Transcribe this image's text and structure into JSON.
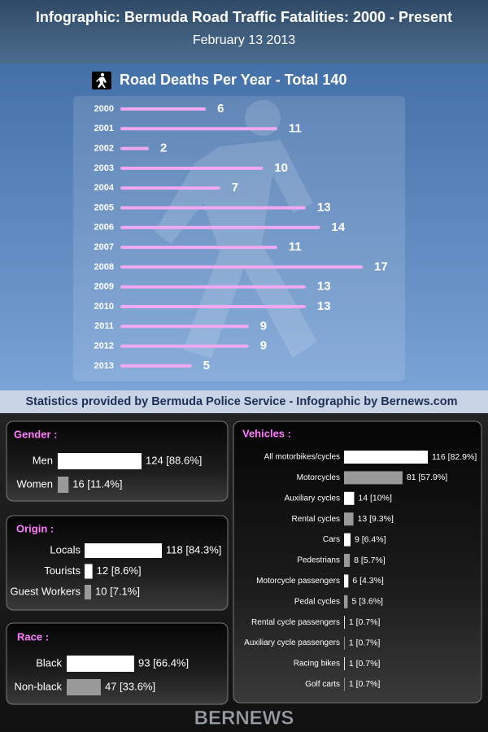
{
  "title": "Infographic: Bermuda Road Traffic Fatalities: 2000 - Present",
  "date": "February 13 2013",
  "credit": "Statistics provided by Bermuda Police Service - Infographic by Bernews.com",
  "footer": "BERNEWS",
  "chart_data": [
    {
      "type": "bar",
      "title": "Road Deaths Per Year - Total 140",
      "categories": [
        "2000",
        "2001",
        "2002",
        "2003",
        "2004",
        "2005",
        "2006",
        "2007",
        "2008",
        "2009",
        "2010",
        "2011",
        "2012",
        "2013"
      ],
      "values": [
        6,
        11,
        2,
        10,
        7,
        13,
        14,
        11,
        17,
        13,
        13,
        9,
        9,
        5
      ],
      "color": "#f0a8f0"
    },
    {
      "type": "bar",
      "title": "Gender :",
      "categories": [
        "Men",
        "Women"
      ],
      "values": [
        124,
        16
      ],
      "value_labels": [
        "124 [88.6%]",
        "16 [11.4%]"
      ],
      "colors": [
        "#ffffff",
        "#999999"
      ]
    },
    {
      "type": "bar",
      "title": "Origin :",
      "categories": [
        "Locals",
        "Tourists",
        "Guest Workers"
      ],
      "values": [
        118,
        12,
        10
      ],
      "value_labels": [
        "118 [84.3%]",
        "12 [8.6%]",
        "10 [7.1%]"
      ],
      "colors": [
        "#ffffff",
        "#ffffff",
        "#999999"
      ]
    },
    {
      "type": "bar",
      "title": "Race :",
      "categories": [
        "Black",
        "Non-black"
      ],
      "values": [
        93,
        47
      ],
      "value_labels": [
        "93 [66.4%]",
        "47 [33.6%]"
      ],
      "colors": [
        "#ffffff",
        "#999999"
      ]
    },
    {
      "type": "bar",
      "title": "Vehicles :",
      "categories": [
        "All motorbikes/cycles",
        "Motorcycles",
        "Auxiliary cycles",
        "Rental cycles",
        "Cars",
        "Pedestrians",
        "Motorcycle passengers",
        "Pedal cycles",
        "Rental cycle passengers",
        "Auxiliary cycle passengers",
        "Racing bikes",
        "Golf carts"
      ],
      "values": [
        116,
        81,
        14,
        13,
        9,
        8,
        6,
        5,
        1,
        1,
        1,
        1
      ],
      "value_labels": [
        "116 [82.9%]",
        "81 [57.9%]",
        "14 [10%]",
        "13 [9.3%]",
        "9 [6.4%]",
        "8 [5.7%]",
        "6 [4.3%]",
        "5 [3.6%]",
        "1 [0.7%]",
        "1 [0.7%]",
        "1 [0.7%]",
        "1 [0.7%]"
      ],
      "colors": [
        "#ffffff",
        "#999999",
        "#ffffff",
        "#999999",
        "#ffffff",
        "#999999",
        "#ffffff",
        "#999999",
        "#ffffff",
        "#999999",
        "#ffffff",
        "#999999"
      ]
    }
  ]
}
